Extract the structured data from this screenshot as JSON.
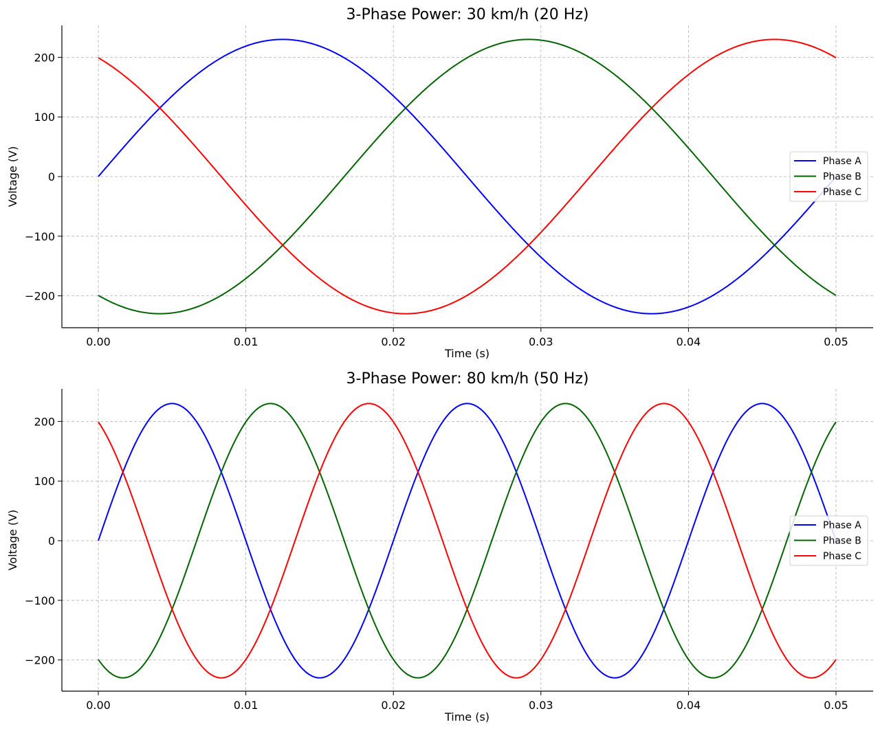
{
  "chart_data": [
    {
      "type": "line",
      "title": "3-Phase Power: 30 km/h (20 Hz)",
      "xlabel": "Time (s)",
      "ylabel": "Voltage (V)",
      "frequency_hz": 20,
      "amplitude_v": 230,
      "xlim": [
        0,
        0.05
      ],
      "ylim": [
        -250,
        250
      ],
      "xticks": [
        0.0,
        0.01,
        0.02,
        0.03,
        0.04,
        0.05
      ],
      "xtick_labels": [
        "0.00",
        "0.01",
        "0.02",
        "0.03",
        "0.04",
        "0.05"
      ],
      "yticks": [
        -200,
        -100,
        0,
        100,
        200
      ],
      "ytick_labels": [
        "−200",
        "−100",
        "0",
        "100",
        "200"
      ],
      "grid": true,
      "legend_position": "right",
      "series": [
        {
          "name": "Phase A",
          "color": "#0000ff",
          "phase_deg": 0
        },
        {
          "name": "Phase B",
          "color": "#006400",
          "phase_deg": -120
        },
        {
          "name": "Phase C",
          "color": "#ff0000",
          "phase_deg": 120
        }
      ]
    },
    {
      "type": "line",
      "title": "3-Phase Power: 80 km/h (50 Hz)",
      "xlabel": "Time (s)",
      "ylabel": "Voltage (V)",
      "frequency_hz": 50,
      "amplitude_v": 230,
      "xlim": [
        0,
        0.05
      ],
      "ylim": [
        -250,
        250
      ],
      "xticks": [
        0.0,
        0.01,
        0.02,
        0.03,
        0.04,
        0.05
      ],
      "xtick_labels": [
        "0.00",
        "0.01",
        "0.02",
        "0.03",
        "0.04",
        "0.05"
      ],
      "yticks": [
        -200,
        -100,
        0,
        100,
        200
      ],
      "ytick_labels": [
        "−200",
        "−100",
        "0",
        "100",
        "200"
      ],
      "grid": true,
      "legend_position": "right",
      "series": [
        {
          "name": "Phase A",
          "color": "#0000ff",
          "phase_deg": 0
        },
        {
          "name": "Phase B",
          "color": "#006400",
          "phase_deg": -120
        },
        {
          "name": "Phase C",
          "color": "#ff0000",
          "phase_deg": 120
        }
      ]
    }
  ]
}
